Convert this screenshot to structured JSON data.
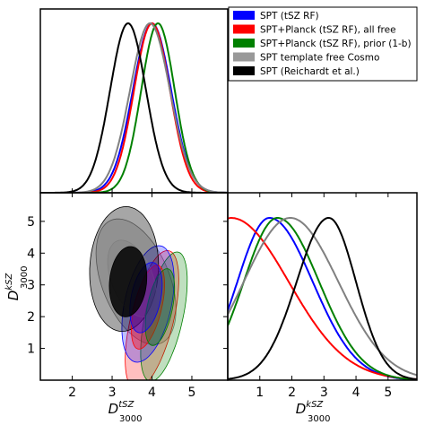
{
  "chart_data": {
    "type": "triangle",
    "legend": {
      "position": "top-right",
      "entries": [
        {
          "label": "SPT (tSZ RF)",
          "color": "#0000ff"
        },
        {
          "label": "SPT+Planck (tSZ RF), all free",
          "color": "#ff0000"
        },
        {
          "label": "SPT+Planck (tSZ RF), prior (1-b)",
          "color": "#008000"
        },
        {
          "label": "SPT template free Cosmo",
          "color": "#808080"
        },
        {
          "label": "SPT (Reichardt et al.)",
          "color": "#000000"
        }
      ]
    },
    "axes": {
      "xlabel_tsz": {
        "main": "D",
        "sup": "tSZ",
        "sub": "3000"
      },
      "xlabel_ksz": {
        "main": "D",
        "sup": "kSZ",
        "sub": "3000"
      },
      "ylabel_ksz": {
        "main": "D",
        "sup": "kSZ",
        "sub": "3000"
      },
      "tsz_range": [
        1.2,
        5.9
      ],
      "ksz_range": [
        0,
        5.9
      ],
      "tsz_ticks": [
        "2",
        "3",
        "4",
        "5"
      ],
      "ksz_ticks": [
        "1",
        "2",
        "3",
        "4",
        "5"
      ],
      "ksz_ytick_labels": [
        "1",
        "2",
        "3",
        "4",
        "5"
      ]
    },
    "tsz_1d": [
      {
        "name": "SPT (tSZ RF)",
        "color": "#0000ff",
        "mean": 4.0,
        "sigma": 0.48
      },
      {
        "name": "SPT+Planck (tSZ RF), all free",
        "color": "#ff0000",
        "mean": 4.0,
        "sigma": 0.45
      },
      {
        "name": "SPT+Planck (tSZ RF), prior (1-b)",
        "color": "#008000",
        "mean": 4.15,
        "sigma": 0.42
      },
      {
        "name": "SPT template free Cosmo",
        "color": "#808080",
        "mean": 3.95,
        "sigma": 0.5
      },
      {
        "name": "SPT (Reichardt et al.)",
        "color": "#000000",
        "mean": 3.4,
        "sigma": 0.45
      }
    ],
    "ksz_1d": [
      {
        "name": "SPT (tSZ RF)",
        "color": "#0000ff",
        "peak": 1.3,
        "sigma_left": 1.0,
        "sigma_right": 1.35
      },
      {
        "name": "SPT+Planck (tSZ RF), all free",
        "color": "#ff0000",
        "peak": 0.1,
        "sigma_left": 1.0,
        "sigma_right": 1.8
      },
      {
        "name": "SPT+Planck (tSZ RF), prior (1-b)",
        "color": "#008000",
        "peak": 1.55,
        "sigma_left": 1.05,
        "sigma_right": 1.3
      },
      {
        "name": "SPT template free Cosmo",
        "color": "#808080",
        "peak": 1.95,
        "sigma_left": 1.45,
        "sigma_right": 1.5
      },
      {
        "name": "SPT (Reichardt et al.)",
        "color": "#000000",
        "peak": 3.15,
        "sigma_left": 1.0,
        "sigma_right": 0.85
      }
    ],
    "contours_2d": [
      {
        "name": "SPT template free Cosmo",
        "color": "#808080",
        "outer": {
          "cx": 3.6,
          "cy": 3.1,
          "sx": 1.15,
          "sy": 1.55,
          "angle": -38
        },
        "inner": {
          "cx": 3.5,
          "cy": 3.2,
          "sx": 0.7,
          "sy": 0.95,
          "angle": -38
        }
      },
      {
        "name": "SPT+Planck (tSZ RF), all free",
        "color": "#ff0000",
        "outer": {
          "cx": 4.0,
          "cy": 1.9,
          "sx": 0.5,
          "sy": 2.4,
          "angle": -28
        },
        "inner": {
          "cx": 3.9,
          "cy": 2.3,
          "sx": 0.32,
          "sy": 1.45,
          "angle": -28
        }
      },
      {
        "name": "SPT+Planck (tSZ RF), prior (1-b)",
        "color": "#008000",
        "outer": {
          "cx": 4.3,
          "cy": 2.0,
          "sx": 0.45,
          "sy": 2.2,
          "angle": -25
        },
        "inner": {
          "cx": 4.2,
          "cy": 2.3,
          "sx": 0.3,
          "sy": 1.3,
          "angle": -25
        }
      },
      {
        "name": "SPT (tSZ RF)",
        "color": "#0000ff",
        "outer": {
          "cx": 3.9,
          "cy": 2.4,
          "sx": 0.55,
          "sy": 2.0,
          "angle": -30
        },
        "inner": {
          "cx": 3.85,
          "cy": 2.6,
          "sx": 0.35,
          "sy": 1.2,
          "angle": -30
        }
      },
      {
        "name": "SPT (Reichardt et al.)",
        "color": "#000000",
        "outer": {
          "cx": 3.3,
          "cy": 3.5,
          "sx": 0.85,
          "sy": 2.0,
          "angle": -32
        },
        "inner": {
          "cx": 3.4,
          "cy": 3.1,
          "sx": 0.45,
          "sy": 1.15,
          "angle": -32
        }
      }
    ]
  }
}
